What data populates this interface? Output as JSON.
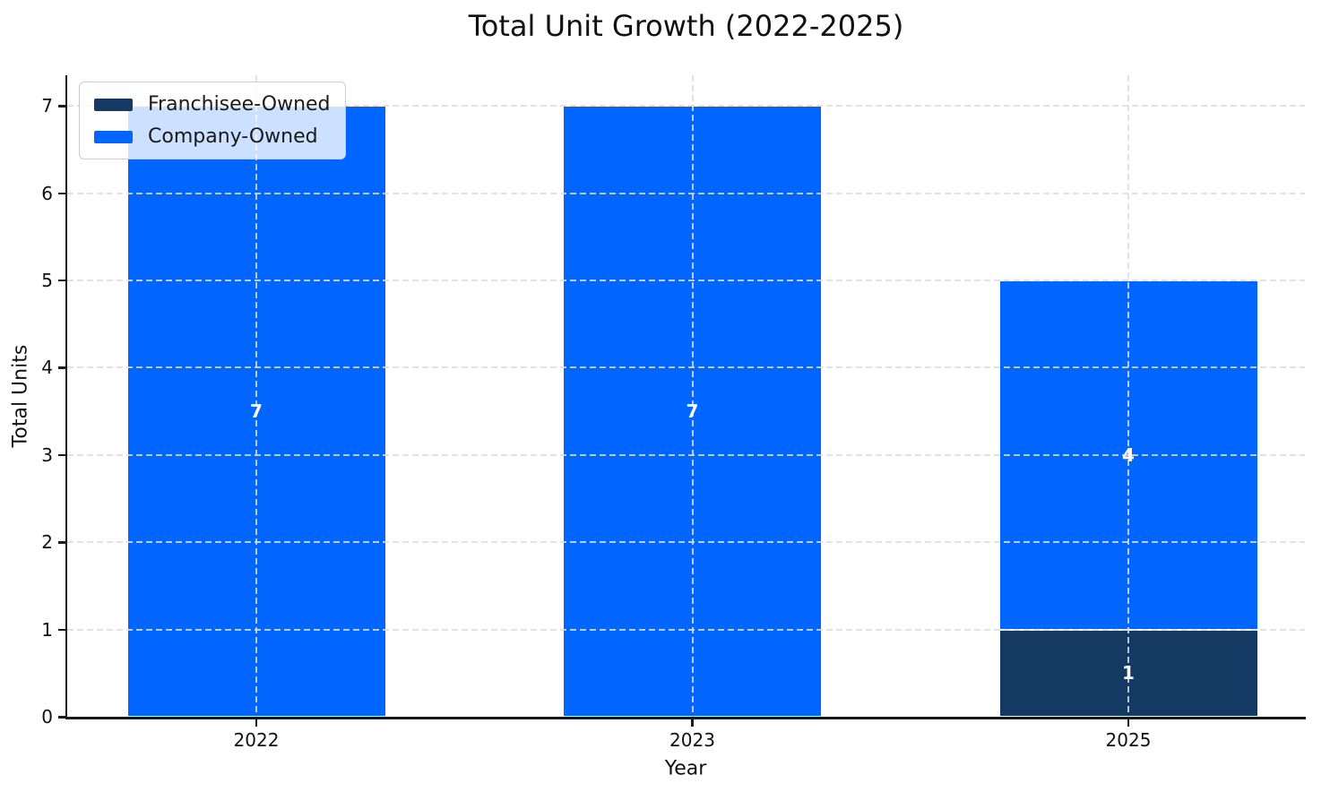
{
  "chart_data": {
    "type": "bar",
    "stacked": true,
    "title": "Total Unit Growth (2022-2025)",
    "xlabel": "Year",
    "ylabel": "Total Units",
    "categories": [
      "2022",
      "2023",
      "2025"
    ],
    "series": [
      {
        "name": "Franchisee-Owned",
        "color": "#143a63",
        "values": [
          0,
          0,
          1
        ]
      },
      {
        "name": "Company-Owned",
        "color": "#0066ff",
        "values": [
          7,
          7,
          4
        ]
      }
    ],
    "visible_value_labels": [
      "7",
      "7",
      "4",
      "1"
    ],
    "yticks": [
      0,
      1,
      2,
      3,
      4,
      5,
      6,
      7
    ],
    "ylim": [
      0,
      7.35
    ],
    "grid": true,
    "grid_style": "dashed",
    "legend_position": "upper-left",
    "value_label_color": "#ffffff",
    "colors": {
      "axis": "#1a1a1a",
      "grid": "#dadde0",
      "background": "#ffffff",
      "title": "#111111"
    }
  }
}
